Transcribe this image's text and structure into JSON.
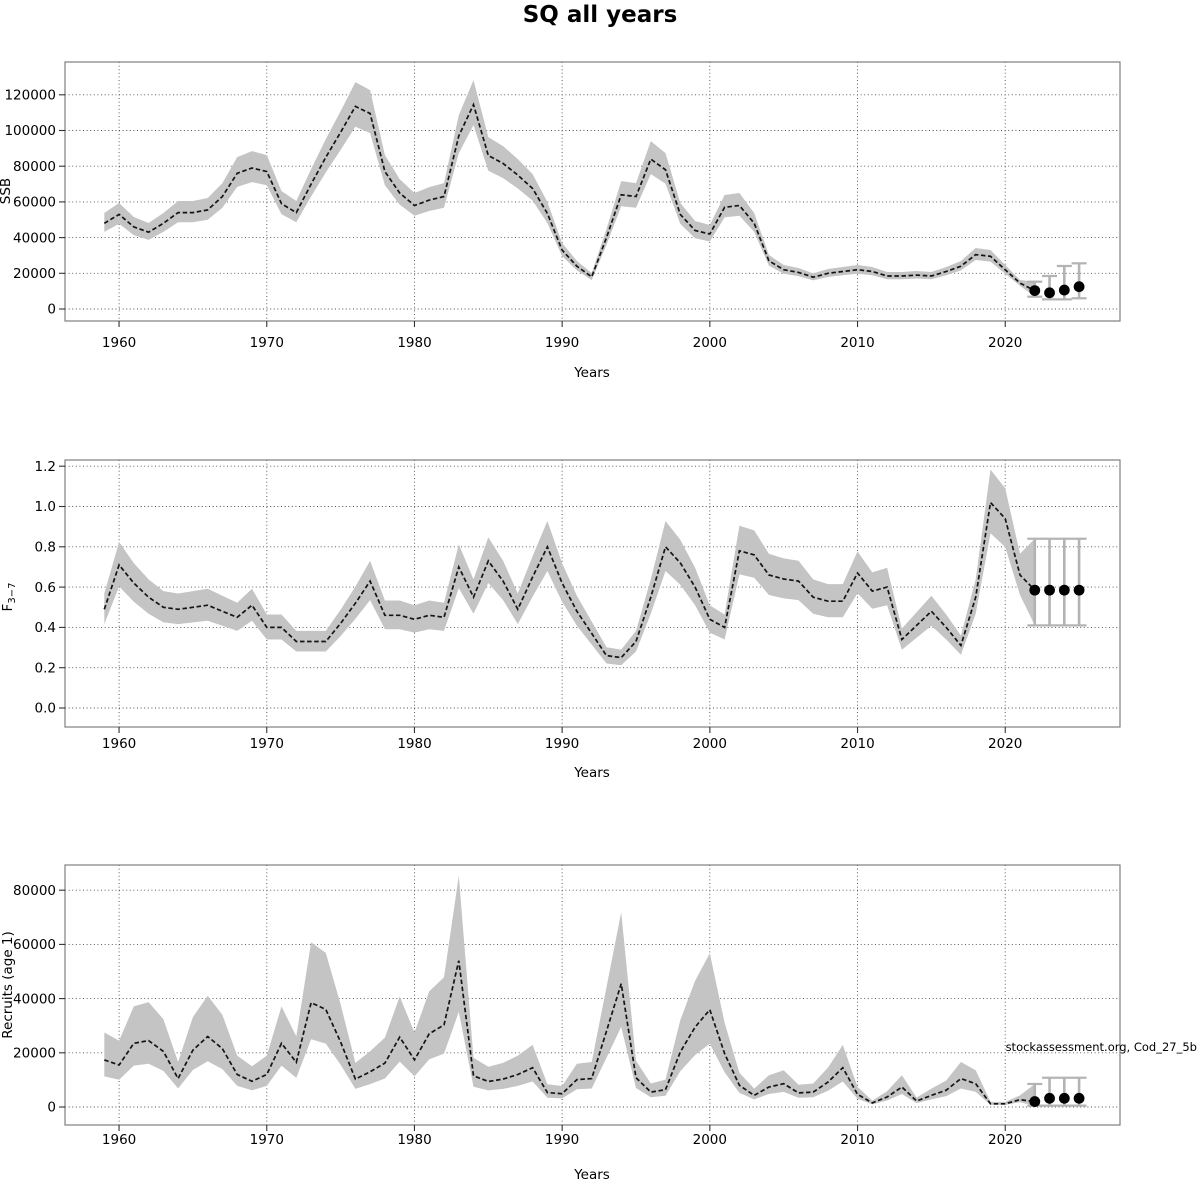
{
  "title": "SQ all years",
  "watermark": "stockassessment.org, Cod_27_5b",
  "colors": {
    "background": "#ffffff",
    "band": "#c4c4c4",
    "line": "#141414",
    "grid": "#4d4d4d",
    "border": "#7f7f7f",
    "tick": "#333333",
    "text": "#000000",
    "forecast_dot": "#000000",
    "errorbar": "#b3b3b3"
  },
  "chart_data": [
    {
      "type": "line",
      "panel": "ssb",
      "title": "",
      "ylabel": "SSB",
      "ylabel_sub": "",
      "xlabel": "Years",
      "x_start": 1959,
      "x_end": 2021,
      "x_ticks": {
        "values": [
          1960,
          1970,
          1980,
          1990,
          2000,
          2010,
          2020
        ],
        "labels": [
          "1960",
          "1970",
          "1980",
          "1990",
          "2000",
          "2010",
          "2020"
        ]
      },
      "y_ticks": {
        "values": [
          0,
          20000,
          40000,
          60000,
          80000,
          100000,
          120000
        ],
        "labels": [
          "0",
          "20000",
          "40000",
          "60000",
          "80000",
          "100000",
          "120000"
        ]
      },
      "ylim": [
        0,
        130000
      ],
      "grid": true,
      "values": [
        48000,
        53000,
        46000,
        43000,
        48000,
        54000,
        54000,
        55500,
        63000,
        76000,
        79000,
        77000,
        59000,
        54000,
        70000,
        85000,
        99000,
        113500,
        109500,
        77000,
        65000,
        58000,
        61000,
        63000,
        97000,
        114500,
        86000,
        81500,
        75000,
        67500,
        53500,
        33000,
        24000,
        18000,
        40000,
        64000,
        63000,
        84000,
        78000,
        53000,
        44000,
        42000,
        57000,
        58000,
        48000,
        27000,
        22000,
        20500,
        17800,
        20000,
        21000,
        22000,
        21000,
        18500,
        18500,
        19000,
        18500,
        21000,
        24000,
        30500,
        29500,
        22000,
        14500
      ],
      "ci_factors": [
        0.9,
        1.12
      ],
      "forecast": {
        "x": [
          2022,
          2023,
          2024,
          2025
        ],
        "values": [
          10300,
          9100,
          10600,
          12500
        ],
        "lower": [
          6900,
          5400,
          5400,
          6000
        ],
        "upper": [
          15300,
          18500,
          24100,
          25600
        ]
      }
    },
    {
      "type": "line",
      "panel": "f",
      "title": "",
      "ylabel": "F",
      "ylabel_sub": "3−7",
      "xlabel": "Years",
      "x_start": 1959,
      "x_end": 2021,
      "x_ticks": {
        "values": [
          1960,
          1970,
          1980,
          1990,
          2000,
          2010,
          2020
        ],
        "labels": [
          "1960",
          "1970",
          "1980",
          "1990",
          "2000",
          "2010",
          "2020"
        ]
      },
      "y_ticks": {
        "values": [
          0.0,
          0.2,
          0.4,
          0.6,
          0.8,
          1.0,
          1.2
        ],
        "labels": [
          "0.0",
          "0.2",
          "0.4",
          "0.6",
          "0.8",
          "1.0",
          "1.2"
        ]
      },
      "ylim": [
        0,
        1.2
      ],
      "grid": true,
      "values": [
        0.49,
        0.71,
        0.62,
        0.55,
        0.5,
        0.49,
        0.5,
        0.51,
        0.48,
        0.45,
        0.51,
        0.4,
        0.4,
        0.33,
        0.33,
        0.33,
        0.42,
        0.52,
        0.63,
        0.46,
        0.46,
        0.44,
        0.46,
        0.45,
        0.7,
        0.55,
        0.73,
        0.63,
        0.49,
        0.65,
        0.8,
        0.62,
        0.48,
        0.37,
        0.26,
        0.25,
        0.33,
        0.55,
        0.8,
        0.72,
        0.6,
        0.44,
        0.4,
        0.78,
        0.76,
        0.66,
        0.64,
        0.63,
        0.55,
        0.53,
        0.53,
        0.67,
        0.58,
        0.6,
        0.34,
        0.41,
        0.48,
        0.4,
        0.31,
        0.55,
        1.02,
        0.94,
        0.66
      ],
      "ci_factors": [
        0.85,
        1.16
      ],
      "forecast": {
        "x": [
          2022,
          2023,
          2024,
          2025
        ],
        "values": [
          0.585,
          0.585,
          0.585,
          0.585
        ],
        "lower": [
          0.41,
          0.41,
          0.41,
          0.41
        ],
        "upper": [
          0.84,
          0.84,
          0.84,
          0.84
        ]
      }
    },
    {
      "type": "line",
      "panel": "recruits",
      "title": "",
      "ylabel": "Recruits (age 1)",
      "ylabel_sub": "",
      "xlabel": "Years",
      "x_start": 1959,
      "x_end": 2021,
      "x_ticks": {
        "values": [
          1960,
          1970,
          1980,
          1990,
          2000,
          2010,
          2020
        ],
        "labels": [
          "1960",
          "1970",
          "1980",
          "1990",
          "2000",
          "2010",
          "2020"
        ]
      },
      "y_ticks": {
        "values": [
          0,
          20000,
          40000,
          60000,
          80000
        ],
        "labels": [
          "0",
          "20000",
          "40000",
          "60000",
          "80000"
        ]
      },
      "ylim": [
        0,
        86000
      ],
      "grid": true,
      "values": [
        17400,
        15500,
        23500,
        24500,
        20500,
        10500,
        21000,
        26000,
        21500,
        12000,
        9500,
        12000,
        23500,
        16500,
        38500,
        36000,
        24000,
        10300,
        13000,
        16200,
        25800,
        17400,
        27000,
        30300,
        54000,
        11500,
        9400,
        10300,
        12000,
        14500,
        5300,
        4900,
        10100,
        10500,
        28000,
        45500,
        10800,
        5500,
        6400,
        20300,
        29500,
        35900,
        19700,
        8000,
        4300,
        7400,
        8600,
        5200,
        5500,
        9200,
        14500,
        4700,
        1500,
        3700,
        7400,
        2200,
        4300,
        6200,
        10500,
        8600,
        1200,
        1200,
        2700
      ],
      "ci_factors": [
        0.65,
        1.58
      ],
      "forecast": {
        "x": [
          2022,
          2023,
          2024,
          2025
        ],
        "values": [
          2000,
          3200,
          3200,
          3200
        ],
        "lower": [
          500,
          500,
          500,
          500
        ],
        "upper": [
          8500,
          10800,
          10800,
          10800
        ]
      }
    }
  ]
}
